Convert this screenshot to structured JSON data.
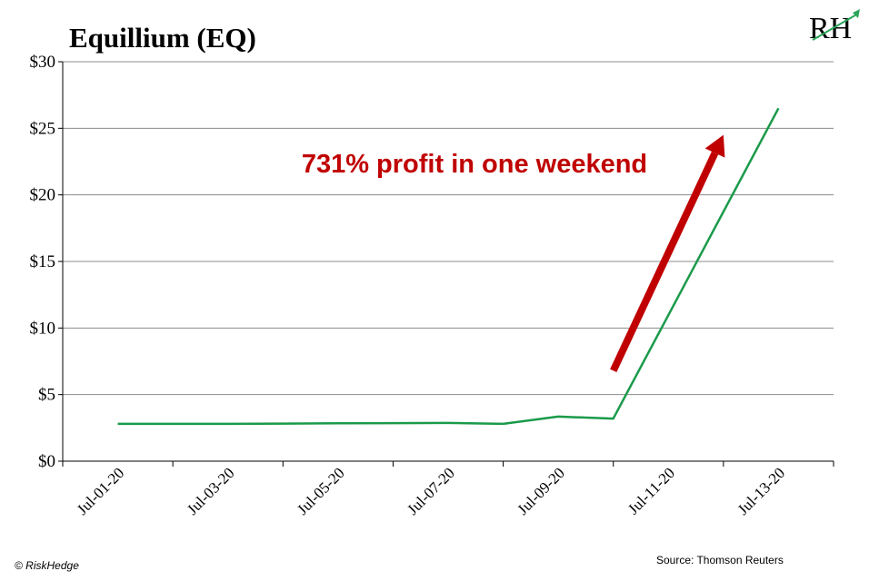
{
  "chart_data": {
    "type": "line",
    "title": "Equillium (EQ)",
    "xlabel": "",
    "ylabel": "",
    "ylim": [
      0,
      30
    ],
    "yticks": [
      0,
      5,
      10,
      15,
      20,
      25,
      30
    ],
    "ytick_labels": [
      "$0",
      "$5",
      "$10",
      "$15",
      "$20",
      "$25",
      "$30"
    ],
    "xtick_labels": [
      "Jul-01-20",
      "Jul-03-20",
      "Jul-05-20",
      "Jul-07-20",
      "Jul-09-20",
      "Jul-11-20",
      "Jul-13-20"
    ],
    "xlim": [
      "2020-07-00",
      "2020-07-14"
    ],
    "grid": true,
    "series": [
      {
        "color": "#1a9a4a",
        "points": [
          {
            "x": "2020-07-01",
            "y": 2.8
          },
          {
            "x": "2020-07-02",
            "y": 2.8
          },
          {
            "x": "2020-07-03",
            "y": 2.8
          },
          {
            "x": "2020-07-04",
            "y": 2.82
          },
          {
            "x": "2020-07-05",
            "y": 2.84
          },
          {
            "x": "2020-07-06",
            "y": 2.86
          },
          {
            "x": "2020-07-07",
            "y": 2.87
          },
          {
            "x": "2020-07-08",
            "y": 2.8
          },
          {
            "x": "2020-07-09",
            "y": 3.35
          },
          {
            "x": "2020-07-10",
            "y": 3.2
          },
          {
            "x": "2020-07-13",
            "y": 26.5
          }
        ]
      }
    ],
    "annotation": {
      "text": "731% profit in one weekend",
      "color": "#c00000",
      "arrow_from": {
        "x": "2020-07-10",
        "y": 6.8
      },
      "arrow_to": {
        "x": "2020-07-12",
        "y": 24.5
      }
    }
  },
  "footer": {
    "credit": "© RiskHedge",
    "source": "Source: Thomson Reuters"
  },
  "logo": {
    "text": "RH",
    "accent_color": "#2ba55a"
  }
}
